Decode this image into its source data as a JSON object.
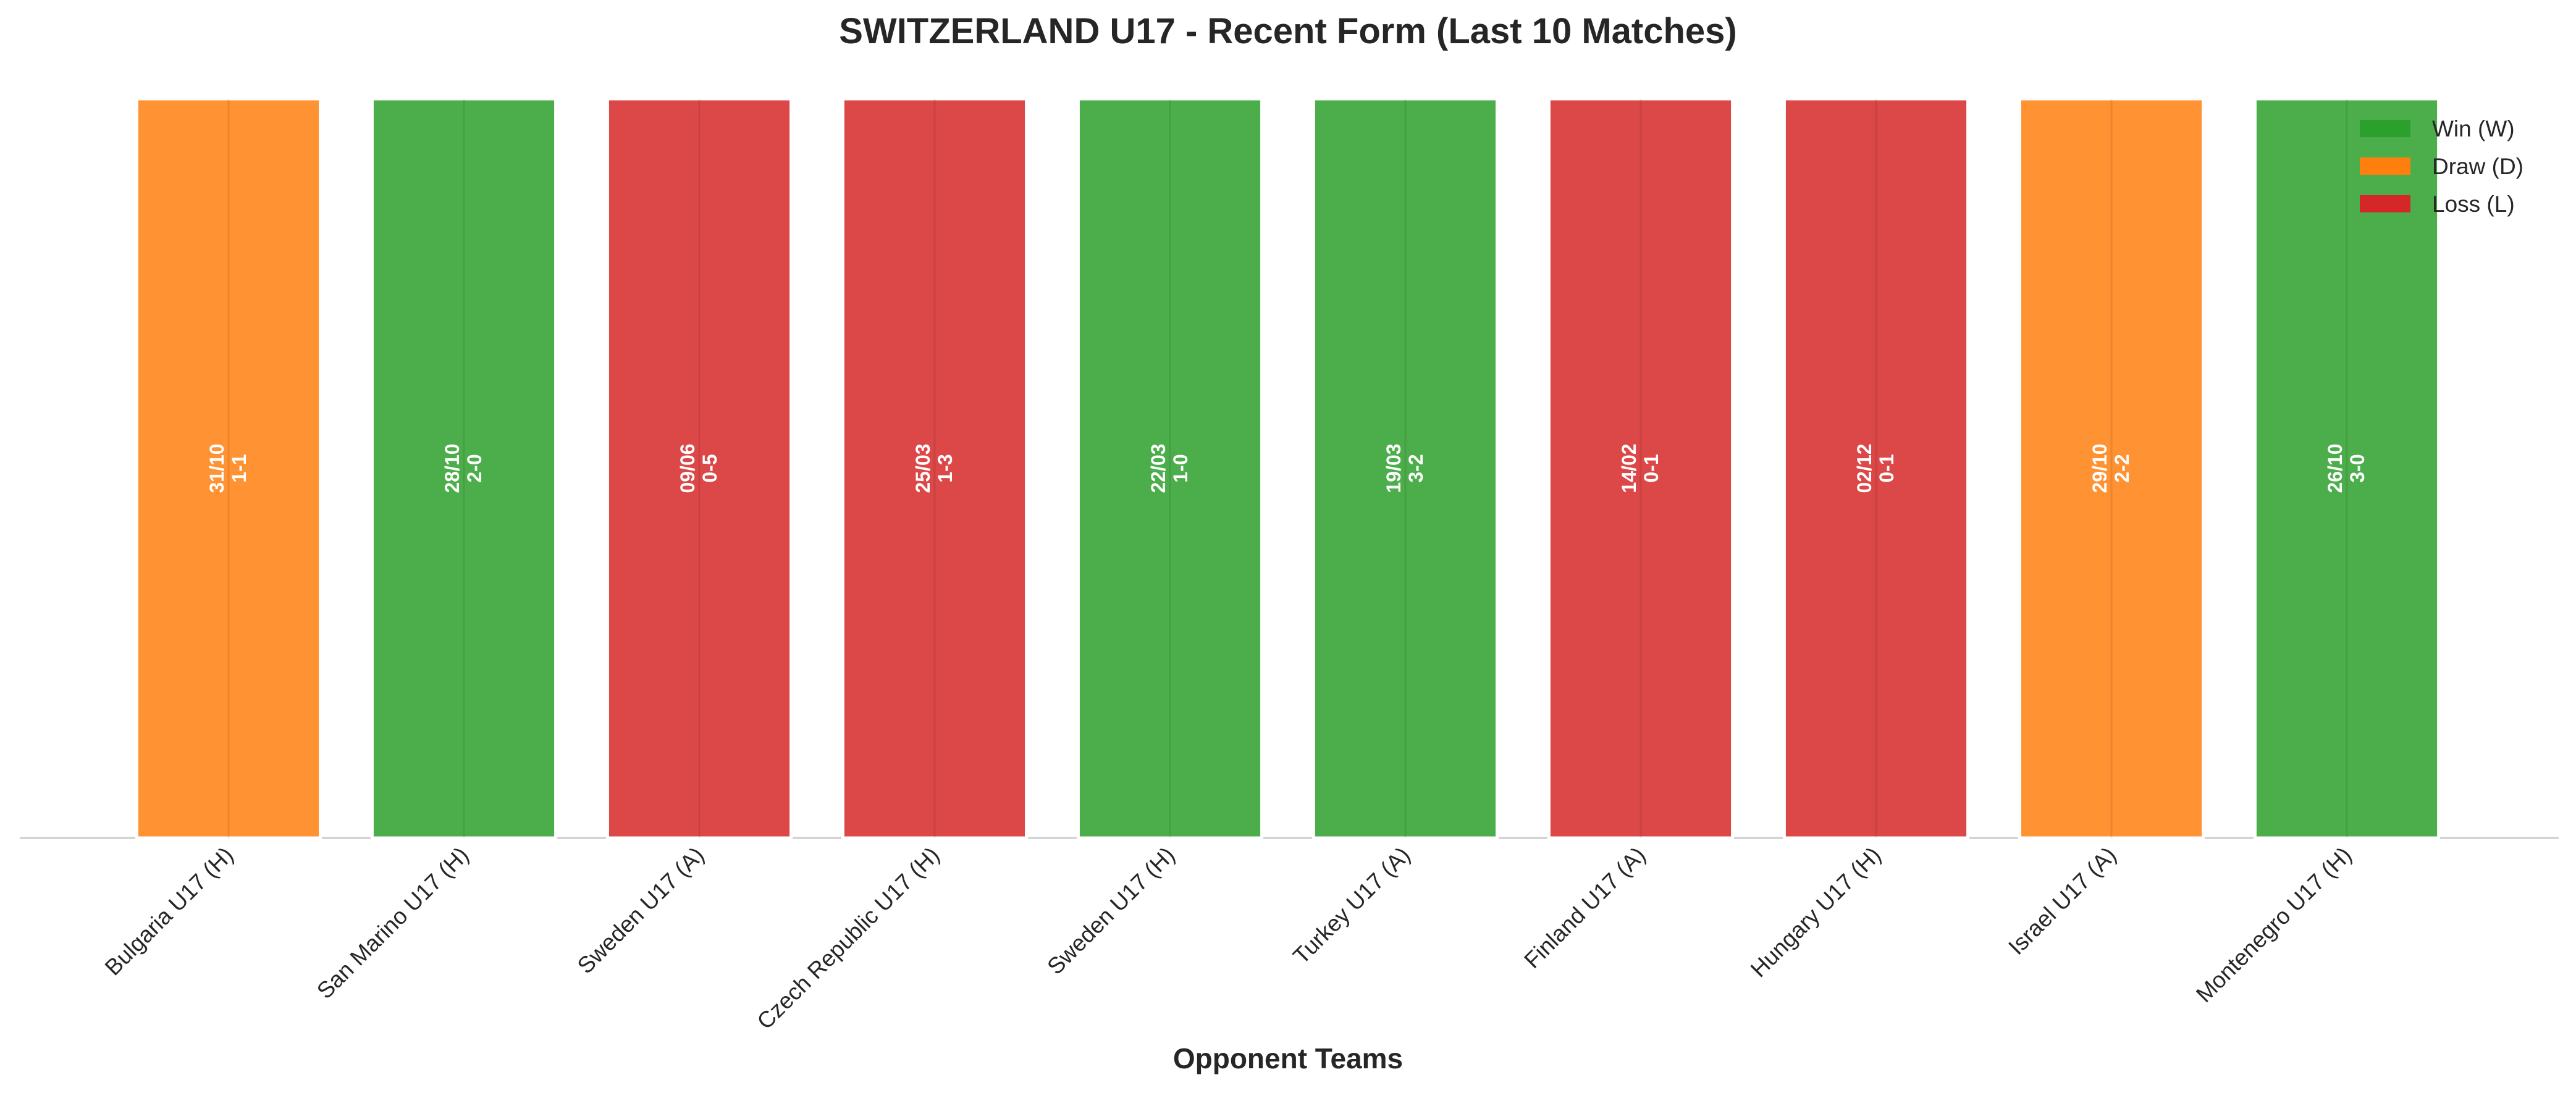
{
  "chart_data": {
    "type": "bar",
    "title": "SWITZERLAND U17 - Recent Form (Last 10 Matches)",
    "x_label": "Opponent Teams",
    "categories": [
      "Bulgaria U17 (H)",
      "San Marino U17 (H)",
      "Sweden U17 (A)",
      "Czech Republic U17 (H)",
      "Sweden U17 (H)",
      "Turkey U17 (A)",
      "Finland U17 (A)",
      "Hungary U17 (H)",
      "Israel U17 (A)",
      "Montenegro U17 (H)"
    ],
    "values": [
      1,
      1,
      1,
      1,
      1,
      1,
      1,
      1,
      1,
      1
    ],
    "ylim": [
      0,
      1
    ],
    "dates": [
      "31/10",
      "28/10",
      "09/06",
      "25/03",
      "22/03",
      "19/03",
      "14/02",
      "02/12",
      "29/10",
      "26/10"
    ],
    "scores": [
      "1-1",
      "2-0",
      "0-5",
      "1-3",
      "1-0",
      "3-2",
      "0-1",
      "0-1",
      "2-2",
      "3-0"
    ],
    "colors": [
      "#ff7f0e",
      "#2ca02c",
      "#d62728",
      "#d62728",
      "#2ca02c",
      "#2ca02c",
      "#d62728",
      "#d62728",
      "#ff7f0e",
      "#2ca02c"
    ],
    "legend": [
      {
        "name": "Win (W)",
        "color": "#2ca02c"
      },
      {
        "name": "Draw (D)",
        "color": "#ff7f0e"
      },
      {
        "name": "Loss (L)",
        "color": "#d62728"
      }
    ],
    "legend_position": "upper right",
    "grid": true
  }
}
